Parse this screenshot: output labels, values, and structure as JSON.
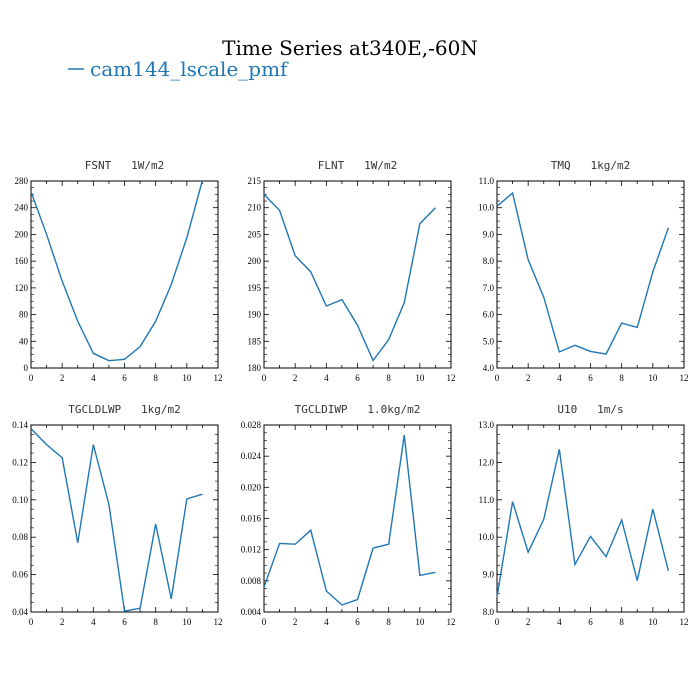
{
  "figure": {
    "title": "Time Series at340E,-60N",
    "legend_label": "cam144_lscale_pmf",
    "line_color": "#1f77b4"
  },
  "chart_data": [
    {
      "type": "line",
      "title": "FSNT   1W/m2",
      "xlim": [
        0,
        12
      ],
      "ylim": [
        0,
        280
      ],
      "xticks": [
        "0",
        "2",
        "4",
        "6",
        "8",
        "10",
        "12"
      ],
      "yticks": [
        "0",
        "40",
        "80",
        "120",
        "160",
        "200",
        "240",
        "280"
      ],
      "x": [
        0,
        1,
        2,
        3,
        4,
        5,
        6,
        7,
        8,
        9,
        10,
        11
      ],
      "series": [
        {
          "name": "cam144_lscale_pmf",
          "values": [
            264,
            200,
            130,
            70,
            22,
            11,
            13,
            32,
            70,
            125,
            195,
            281
          ]
        }
      ]
    },
    {
      "type": "line",
      "title": "FLNT   1W/m2",
      "xlim": [
        0,
        12
      ],
      "ylim": [
        180,
        215
      ],
      "xticks": [
        "0",
        "2",
        "4",
        "6",
        "8",
        "10",
        "12"
      ],
      "yticks": [
        "180",
        "185",
        "190",
        "195",
        "200",
        "205",
        "210",
        "215"
      ],
      "x": [
        0,
        1,
        2,
        3,
        4,
        5,
        6,
        7,
        8,
        9,
        10,
        11
      ],
      "series": [
        {
          "name": "cam144_lscale_pmf",
          "values": [
            212.5,
            209.5,
            201,
            198,
            191.6,
            192.8,
            188,
            181.4,
            185.3,
            192.2,
            207,
            210
          ]
        }
      ]
    },
    {
      "type": "line",
      "title": "TMQ   1kg/m2",
      "xlim": [
        0,
        12
      ],
      "ylim": [
        4.0,
        11.0
      ],
      "xticks": [
        "0",
        "2",
        "4",
        "6",
        "8",
        "10",
        "12"
      ],
      "yticks": [
        "4.0",
        "5.0",
        "6.0",
        "7.0",
        "8.0",
        "9.0",
        "10.0",
        "11.0"
      ],
      "x": [
        0,
        1,
        2,
        3,
        4,
        5,
        6,
        7,
        8,
        9,
        10,
        11
      ],
      "series": [
        {
          "name": "cam144_lscale_pmf",
          "values": [
            10.05,
            10.55,
            8.05,
            6.65,
            4.6,
            4.85,
            4.62,
            4.52,
            5.68,
            5.52,
            7.6,
            9.25
          ]
        }
      ]
    },
    {
      "type": "line",
      "title": "TGCLDLWP   1kg/m2",
      "xlim": [
        0,
        12
      ],
      "ylim": [
        0.04,
        0.14
      ],
      "xticks": [
        "0",
        "2",
        "4",
        "6",
        "8",
        "10",
        "12"
      ],
      "yticks": [
        "0.04",
        "0.06",
        "0.08",
        "0.10",
        "0.12",
        "0.14"
      ],
      "x": [
        0,
        1,
        2,
        3,
        4,
        5,
        6,
        7,
        8,
        9,
        10,
        11
      ],
      "series": [
        {
          "name": "cam144_lscale_pmf",
          "values": [
            0.138,
            0.1295,
            0.1225,
            0.077,
            0.1295,
            0.0975,
            0.0405,
            0.042,
            0.087,
            0.047,
            0.1005,
            0.103
          ]
        }
      ]
    },
    {
      "type": "line",
      "title": "TGCLDIWP   1.0kg/m2",
      "xlim": [
        0,
        12
      ],
      "ylim": [
        0.004,
        0.028
      ],
      "xticks": [
        "0",
        "2",
        "4",
        "6",
        "8",
        "10",
        "12"
      ],
      "yticks": [
        "0.004",
        "0.008",
        "0.012",
        "0.016",
        "0.020",
        "0.024",
        "0.028"
      ],
      "x": [
        0,
        1,
        2,
        3,
        4,
        5,
        6,
        7,
        8,
        9,
        10,
        11
      ],
      "series": [
        {
          "name": "cam144_lscale_pmf",
          "values": [
            0.0072,
            0.0128,
            0.0127,
            0.0145,
            0.0067,
            0.0049,
            0.0056,
            0.0122,
            0.0127,
            0.0267,
            0.0087,
            0.0091
          ]
        }
      ]
    },
    {
      "type": "line",
      "title": "U10   1m/s",
      "xlim": [
        0,
        12
      ],
      "ylim": [
        8.0,
        13.0
      ],
      "xticks": [
        "0",
        "2",
        "4",
        "6",
        "8",
        "10",
        "12"
      ],
      "yticks": [
        "8.0",
        "9.0",
        "10.0",
        "11.0",
        "12.0",
        "13.0"
      ],
      "x": [
        0,
        1,
        2,
        3,
        4,
        5,
        6,
        7,
        8,
        9,
        10,
        11
      ],
      "series": [
        {
          "name": "cam144_lscale_pmf",
          "values": [
            8.4,
            10.95,
            9.6,
            10.48,
            12.35,
            9.27,
            10.02,
            9.48,
            10.46,
            8.84,
            10.75,
            9.1
          ]
        }
      ]
    }
  ]
}
